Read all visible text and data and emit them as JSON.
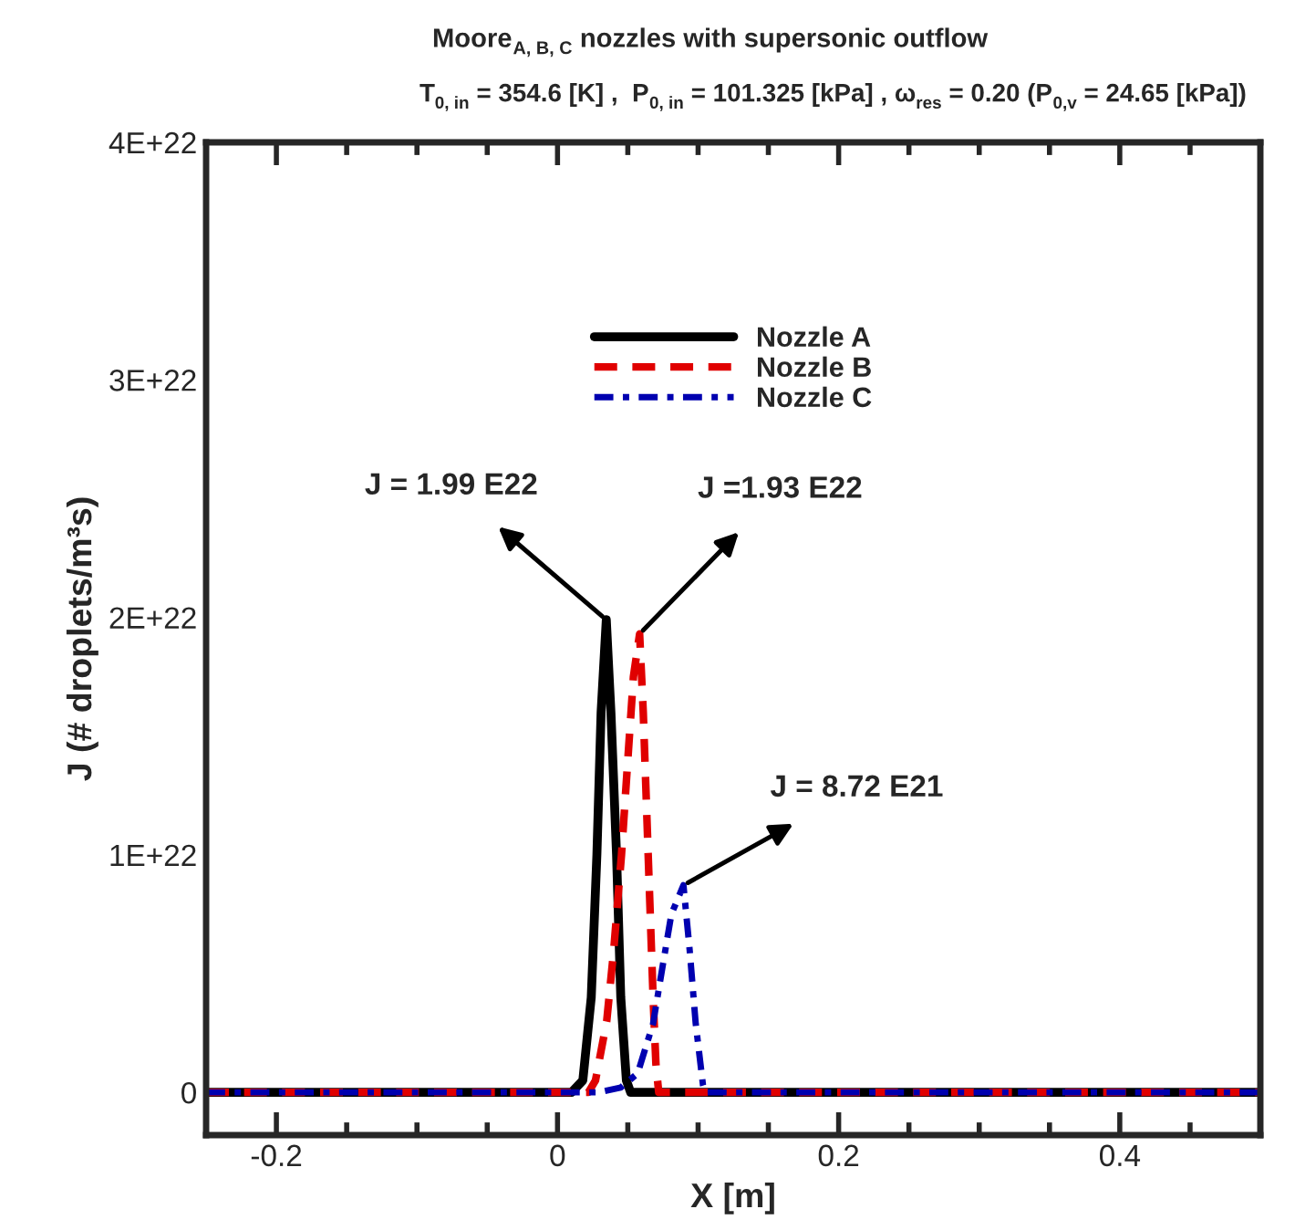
{
  "chart_data": {
    "type": "line",
    "title": "Moore$_{A, B, C}$ nozzles with supersonic outflow",
    "subtitle": "T$_{0, in}$ = 354.6 [K] ,  P$_{0, in}$ = 101.325 [kPa] , ω$_{res}$ = 0.20 (P$_{0,v}$ = 24.65 [kPa])",
    "xlabel": "X [m]",
    "ylabel": "J (# droplets/m³s)",
    "series": [
      {
        "name": "Nozzle A",
        "color": "#000000",
        "line_style": "solid",
        "x": [
          -0.25,
          0.01,
          0.018,
          0.024,
          0.028,
          0.031,
          0.0347,
          0.038,
          0.042,
          0.045,
          0.049,
          0.052,
          0.5
        ],
        "values": [
          0,
          0,
          5e+20,
          4e+21,
          1e+22,
          1.6e+22,
          1.99e+22,
          1.6e+22,
          1e+22,
          4e+21,
          5e+20,
          0,
          0
        ]
      },
      {
        "name": "Nozzle B",
        "color": "#e00000",
        "line_style": "dashed",
        "x": [
          -0.25,
          0.022,
          0.027,
          0.035,
          0.04,
          0.0455,
          0.05,
          0.054,
          0.0584,
          0.061,
          0.0645,
          0.068,
          0.07,
          0.072,
          0.5
        ],
        "values": [
          0,
          0,
          5e+20,
          3e+21,
          6e+21,
          1e+22,
          1.4e+22,
          1.75e+22,
          1.93e+22,
          1.6e+22,
          1e+22,
          4e+21,
          1.2e+21,
          0,
          0
        ]
      },
      {
        "name": "Nozzle C",
        "color": "#0000b0",
        "line_style": "dashdot",
        "x": [
          -0.25,
          0.029,
          0.045,
          0.057,
          0.068,
          0.0753,
          0.081,
          0.0896,
          0.094,
          0.0983,
          0.1035,
          0.105,
          0.5
        ],
        "values": [
          0,
          0,
          2e+20,
          8e+20,
          2.9e+21,
          5.5e+21,
          7.5e+21,
          8.72e+21,
          6e+21,
          2.9e+21,
          3e+20,
          0,
          0
        ]
      }
    ],
    "annotations": [
      {
        "text": "J = 1.99 E22",
        "x": 0.0347,
        "y": 1.99e+22
      },
      {
        "text": "J =1.93 E22",
        "x": 0.0584,
        "y": 1.93e+22
      },
      {
        "text": "J = 8.72 E21",
        "x": 0.0896,
        "y": 8.72e+21
      }
    ],
    "xlim": [
      -0.25,
      0.5
    ],
    "xticks": [
      -0.2,
      0,
      0.2,
      0.4
    ],
    "ylim": [
      -1.8e+21,
      4e+22
    ],
    "yticks": [
      {
        "value": 0,
        "label": "0"
      },
      {
        "value": 1e+22,
        "label": "1E+22"
      },
      {
        "value": 2e+22,
        "label": "2E+22"
      },
      {
        "value": 3e+22,
        "label": "3E+22"
      },
      {
        "value": 4e+22,
        "label": "4E+22"
      }
    ],
    "grid": false,
    "legend": "top"
  }
}
